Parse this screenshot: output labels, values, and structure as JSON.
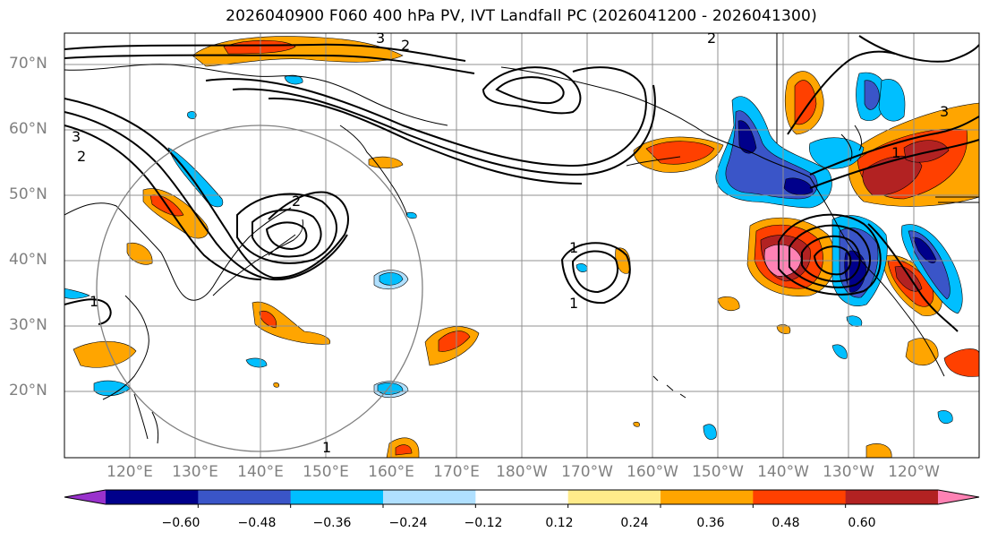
{
  "title": "2026040900 F060 400 hPa PV, IVT Landfall PC (2026041200 - 2026041300)",
  "lat_labels": [
    "70°N",
    "60°N",
    "50°N",
    "40°N",
    "30°N",
    "20°N"
  ],
  "lon_labels": [
    "120°E",
    "130°E",
    "140°E",
    "150°E",
    "160°E",
    "170°E",
    "180°W",
    "170°W",
    "160°W",
    "150°W",
    "140°W",
    "130°W",
    "120°W"
  ],
  "colorbar": {
    "ticks": [
      "−0.60",
      "−0.48",
      "−0.36",
      "−0.24",
      "−0.12",
      "0.12",
      "0.24",
      "0.36",
      "0.48",
      "0.60"
    ],
    "colors": [
      "#9932cc",
      "#00008b",
      "#3a55c8",
      "#00bfff",
      "#b0e0ff",
      "#ffffff",
      "#ffeb8a",
      "#ffa500",
      "#ff4000",
      "#b22222",
      "#ff82b4"
    ]
  },
  "contour_labels": [
    "1",
    "2",
    "3"
  ],
  "map_extent": {
    "lon_min": 110,
    "lon_max": 250,
    "lat_min": 10,
    "lat_max": 75
  }
}
